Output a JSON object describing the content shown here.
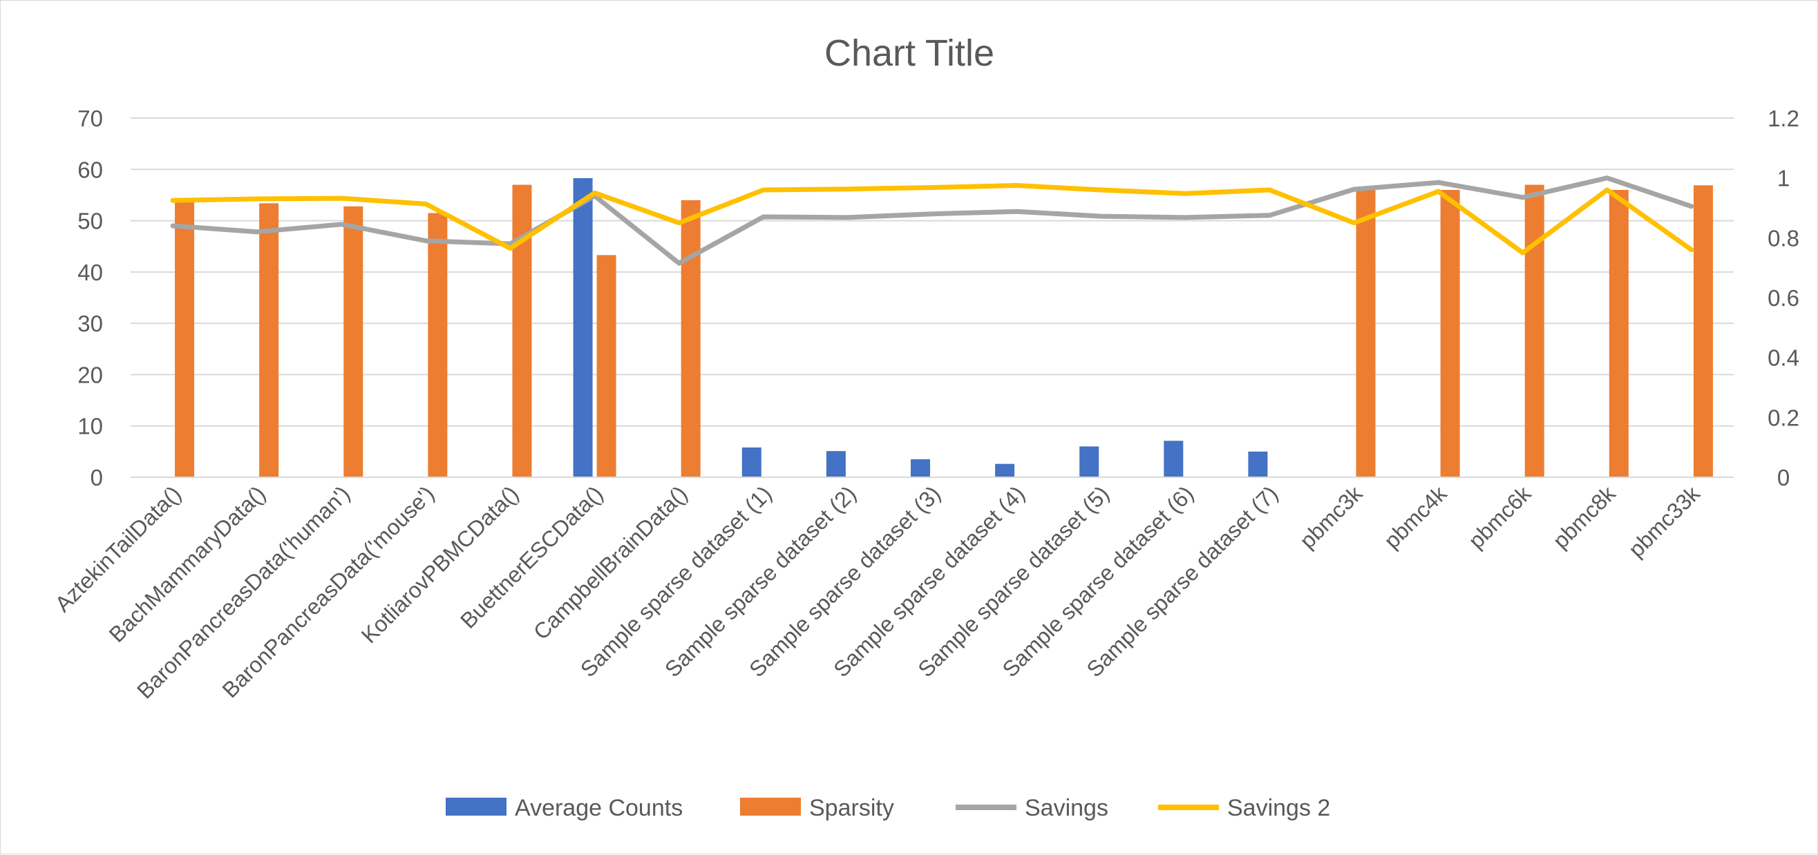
{
  "chart_data": {
    "type": "bar",
    "title": "Chart Title",
    "xlabel": "",
    "ylabel": "",
    "ylim": [
      0,
      70
    ],
    "y2lim": [
      0,
      1.2
    ],
    "yticks": [
      "0",
      "10",
      "20",
      "30",
      "40",
      "50",
      "60",
      "70"
    ],
    "y2ticks": [
      "0",
      "0.2",
      "0.4",
      "0.6",
      "0.8",
      "1",
      "1.2"
    ],
    "grid": true,
    "legend_position": "bottom",
    "categories": [
      "AztekinTailData()",
      "BachMammaryData()",
      "BaronPancreasData('human')",
      "BaronPancreasData('mouse')",
      "KotliarovPBMCData()",
      "BuettnerESCData()",
      "CampbellBrainData()",
      "Sample sparse dataset  (1)",
      "Sample sparse dataset  (2)",
      "Sample sparse dataset  (3)",
      "Sample sparse dataset  (4)",
      "Sample sparse dataset  (5)",
      "Sample sparse dataset  (6)",
      "Sample sparse dataset  (7)",
      "pbmc3k",
      "pbmc4k",
      "pbmc6k",
      "pbmc8k",
      "pbmc33k"
    ],
    "series": [
      {
        "name": "Average Counts",
        "kind": "bar",
        "axis": "left",
        "color": "#4472C4",
        "values": [
          0,
          0,
          0,
          0,
          0,
          58.3,
          0,
          5.8,
          5.1,
          3.5,
          2.6,
          6.0,
          7.1,
          5.0,
          0,
          0,
          0,
          0,
          0
        ]
      },
      {
        "name": "Sparsity",
        "kind": "bar",
        "axis": "left",
        "color": "#ED7D31",
        "values": [
          54.4,
          53.4,
          52.8,
          51.5,
          57.0,
          43.3,
          54.0,
          null,
          null,
          null,
          null,
          null,
          null,
          null,
          56.2,
          56.0,
          57.0,
          56.0,
          56.9
        ]
      },
      {
        "name": "Savings",
        "kind": "line",
        "axis": "right",
        "color": "#A5A5A5",
        "values": [
          0.84,
          0.82,
          0.845,
          0.79,
          0.78,
          0.94,
          0.715,
          0.87,
          0.868,
          0.88,
          0.888,
          0.872,
          0.868,
          0.875,
          0.962,
          0.985,
          0.935,
          1.0,
          0.905
        ]
      },
      {
        "name": "Savings 2",
        "kind": "line",
        "axis": "right",
        "color": "#FFC000",
        "values": [
          0.925,
          0.93,
          0.932,
          0.913,
          0.765,
          0.95,
          0.85,
          0.96,
          0.963,
          0.968,
          0.975,
          0.96,
          0.948,
          0.96,
          0.85,
          0.955,
          0.75,
          0.96,
          0.76
        ]
      }
    ]
  }
}
